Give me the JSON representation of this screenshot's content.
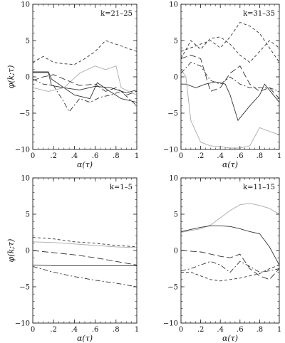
{
  "chart_data": [
    {
      "type": "line",
      "panel_label": "k=21–25",
      "xlabel": "α(τ)",
      "ylabel": "φ(k;τ)",
      "xlim": [
        0,
        1
      ],
      "ylim": [
        -10,
        10
      ],
      "xticks": [
        "0",
        ".2",
        ".4",
        ".6",
        ".8",
        "1"
      ],
      "yticks": [
        "10",
        "5",
        "0",
        "−5",
        "−10"
      ],
      "series": [
        {
          "style": "solid",
          "color": "#333333",
          "x": [
            0,
            0.15,
            0.18,
            0.3,
            0.45,
            0.6,
            0.75,
            0.9,
            1.0
          ],
          "y": [
            0.6,
            0.6,
            -1.2,
            -1.5,
            -1.8,
            -1.3,
            -1.5,
            -2.2,
            -1.8
          ]
        },
        {
          "style": "solid",
          "color": "#333333",
          "x": [
            0,
            0.15,
            0.18,
            0.4,
            0.55,
            0.62,
            0.72,
            0.85,
            1.0
          ],
          "y": [
            0.7,
            0.7,
            -0.3,
            -2.5,
            -3.0,
            -0.8,
            -1.8,
            -3.0,
            -3.5
          ]
        },
        {
          "style": "solid",
          "color": "#aaaaaa",
          "x": [
            0,
            0.15,
            0.3,
            0.45,
            0.6,
            0.7,
            0.8,
            0.85,
            1.0
          ],
          "y": [
            -1.5,
            -2.0,
            -1.5,
            0.5,
            1.5,
            1.0,
            1.5,
            -1.5,
            -2.5
          ]
        },
        {
          "style": "dash",
          "color": "#333333",
          "x": [
            0,
            0.1,
            0.2,
            0.3,
            0.4,
            0.5,
            0.6,
            0.7,
            0.8,
            0.9,
            1.0
          ],
          "y": [
            2.0,
            2.8,
            2.0,
            1.8,
            1.7,
            2.5,
            3.5,
            5.0,
            4.5,
            4.0,
            3.5
          ]
        },
        {
          "style": "dashdot",
          "color": "#333333",
          "x": [
            0,
            0.1,
            0.2,
            0.3,
            0.35,
            0.45,
            0.55,
            0.65,
            0.75,
            0.85,
            1.0
          ],
          "y": [
            -0.3,
            -1.0,
            -1.2,
            -3.5,
            -4.8,
            -3.0,
            -3.5,
            -2.8,
            -2.5,
            -2.0,
            -4.0
          ]
        },
        {
          "style": "longdash",
          "color": "#333333",
          "x": [
            0,
            0.1,
            0.2,
            0.3,
            0.45,
            0.6,
            0.7,
            0.8,
            0.9,
            1.0
          ],
          "y": [
            -0.5,
            0.0,
            0.3,
            -0.3,
            -1.2,
            -1.0,
            -2.0,
            -1.5,
            -2.5,
            -2.0
          ]
        }
      ]
    },
    {
      "type": "line",
      "panel_label": "k=31–35",
      "xlabel": "α(τ)",
      "ylabel": "",
      "xlim": [
        0,
        1
      ],
      "ylim": [
        -10,
        10
      ],
      "xticks": [
        "0",
        ".2",
        ".4",
        ".6",
        ".8",
        "1"
      ],
      "yticks": [
        "10",
        "5",
        "0",
        "−5",
        "−10"
      ],
      "series": [
        {
          "style": "solid",
          "color": "#333333",
          "x": [
            0,
            0.05,
            0.15,
            0.25,
            0.35,
            0.45,
            0.5,
            0.58,
            0.7,
            0.8,
            0.85,
            1.0
          ],
          "y": [
            -1.0,
            -1.0,
            -1.5,
            -1.0,
            -0.7,
            -1.0,
            -2.5,
            -6.0,
            -4.0,
            -2.5,
            -1.0,
            -3.5
          ]
        },
        {
          "style": "solid",
          "color": "#aaaaaa",
          "x": [
            0,
            0.05,
            0.1,
            0.2,
            0.3,
            0.4,
            0.5,
            0.6,
            0.7,
            0.8,
            0.9,
            1.0
          ],
          "y": [
            1.0,
            0.0,
            -6.0,
            -9.0,
            -9.5,
            -9.6,
            -9.8,
            -9.8,
            -9.5,
            -7.0,
            -7.5,
            -8.0
          ]
        },
        {
          "style": "dash",
          "color": "#333333",
          "x": [
            0,
            0.1,
            0.2,
            0.3,
            0.4,
            0.5,
            0.6,
            0.7,
            0.8,
            0.9,
            1.0
          ],
          "y": [
            3.5,
            4.0,
            4.5,
            5.0,
            4.0,
            5.5,
            7.5,
            7.0,
            6.0,
            4.0,
            2.0
          ]
        },
        {
          "style": "dash",
          "color": "#333333",
          "x": [
            0,
            0.1,
            0.2,
            0.3,
            0.4,
            0.5,
            0.6,
            0.7,
            0.8,
            0.9,
            1.0
          ],
          "y": [
            2.5,
            5.0,
            3.8,
            5.3,
            5.5,
            4.5,
            3.0,
            2.0,
            3.5,
            5.0,
            4.0
          ]
        },
        {
          "style": "longdash",
          "color": "#333333",
          "x": [
            0,
            0.1,
            0.2,
            0.3,
            0.4,
            0.5,
            0.6,
            0.7,
            0.8,
            0.9,
            1.0
          ],
          "y": [
            2.5,
            3.0,
            2.5,
            -2.0,
            -1.5,
            0.5,
            1.5,
            -1.0,
            -2.0,
            -1.5,
            -3.0
          ]
        },
        {
          "style": "dashdot",
          "color": "#333333",
          "x": [
            0,
            0.1,
            0.2,
            0.3,
            0.4,
            0.5,
            0.6,
            0.7,
            0.8,
            0.9,
            1.0
          ],
          "y": [
            0.5,
            2.0,
            1.5,
            -0.5,
            -1.0,
            0.0,
            -1.0,
            -1.5,
            -1.5,
            -1.5,
            -2.0
          ]
        }
      ]
    },
    {
      "type": "line",
      "panel_label": "k=1–5",
      "xlabel": "α(τ)",
      "ylabel": "φ(k;τ)",
      "xlim": [
        0,
        1
      ],
      "ylim": [
        -10,
        10
      ],
      "xticks": [
        "0",
        ".2",
        ".4",
        ".6",
        ".8",
        "1"
      ],
      "yticks": [
        "10",
        "5",
        "0",
        "−5",
        "−10"
      ],
      "series": [
        {
          "style": "dash",
          "color": "#333333",
          "x": [
            0,
            0.2,
            0.4,
            0.6,
            0.8,
            1.0
          ],
          "y": [
            1.8,
            1.6,
            1.2,
            1.0,
            0.7,
            0.5
          ]
        },
        {
          "style": "solid",
          "color": "#aaaaaa",
          "x": [
            0,
            0.2,
            0.4,
            0.6,
            0.8,
            1.0
          ],
          "y": [
            1.2,
            1.1,
            0.9,
            0.7,
            0.5,
            0.4
          ]
        },
        {
          "style": "longdash",
          "color": "#333333",
          "x": [
            0,
            0.2,
            0.4,
            0.6,
            0.8,
            1.0
          ],
          "y": [
            0.0,
            -0.3,
            -0.6,
            -1.0,
            -1.5,
            -2.0
          ]
        },
        {
          "style": "solid",
          "color": "#333333",
          "x": [
            0,
            0.2,
            0.4,
            0.6,
            0.8,
            1.0
          ],
          "y": [
            -2.0,
            -2.1,
            -2.1,
            -2.1,
            -2.1,
            -2.1
          ]
        },
        {
          "style": "dashdot",
          "color": "#333333",
          "x": [
            0,
            0.2,
            0.4,
            0.6,
            0.8,
            1.0
          ],
          "y": [
            -2.2,
            -3.0,
            -3.6,
            -4.1,
            -4.5,
            -5.0
          ]
        }
      ]
    },
    {
      "type": "line",
      "panel_label": "k=11–15",
      "xlabel": "α(τ)",
      "ylabel": "",
      "xlim": [
        0,
        1
      ],
      "ylim": [
        -10,
        10
      ],
      "xticks": [
        "0",
        ".2",
        ".4",
        ".6",
        ".8",
        "1"
      ],
      "yticks": [
        "10",
        "5",
        "0",
        "−5",
        "−10"
      ],
      "series": [
        {
          "style": "solid",
          "color": "#aaaaaa",
          "x": [
            0,
            0.2,
            0.3,
            0.4,
            0.5,
            0.6,
            0.7,
            0.8,
            0.9,
            1.0
          ],
          "y": [
            2.5,
            3.0,
            3.5,
            4.5,
            5.5,
            6.3,
            6.5,
            6.2,
            5.8,
            5.0
          ]
        },
        {
          "style": "solid",
          "color": "#333333",
          "x": [
            0,
            0.1,
            0.2,
            0.3,
            0.4,
            0.5,
            0.6,
            0.7,
            0.8,
            0.9,
            1.0
          ],
          "y": [
            2.6,
            2.9,
            3.2,
            3.4,
            3.4,
            3.3,
            3.0,
            2.6,
            2.3,
            0.5,
            -2.0
          ]
        },
        {
          "style": "longdash",
          "color": "#333333",
          "x": [
            0,
            0.2,
            0.3,
            0.4,
            0.5,
            0.6,
            0.7,
            0.8,
            0.9,
            1.0
          ],
          "y": [
            0.0,
            -0.2,
            -0.5,
            -0.8,
            -1.0,
            -0.5,
            -2.5,
            -3.5,
            -4.0,
            -2.5
          ]
        },
        {
          "style": "dashdot",
          "color": "#333333",
          "x": [
            0,
            0.1,
            0.2,
            0.3,
            0.4,
            0.5,
            0.6,
            0.7,
            0.8,
            0.9,
            1.0
          ],
          "y": [
            -2.8,
            -2.5,
            -2.0,
            -1.5,
            -2.0,
            -3.0,
            -1.5,
            -2.2,
            -3.0,
            -2.8,
            -2.5
          ]
        },
        {
          "style": "dash",
          "color": "#333333",
          "x": [
            0,
            0.1,
            0.2,
            0.3,
            0.4,
            0.5,
            0.6,
            0.7,
            0.8,
            0.9,
            1.0
          ],
          "y": [
            -3.0,
            -3.0,
            -3.5,
            -4.0,
            -4.2,
            -4.0,
            -3.8,
            -3.5,
            -3.2,
            -2.5,
            -2.0
          ]
        }
      ]
    }
  ]
}
